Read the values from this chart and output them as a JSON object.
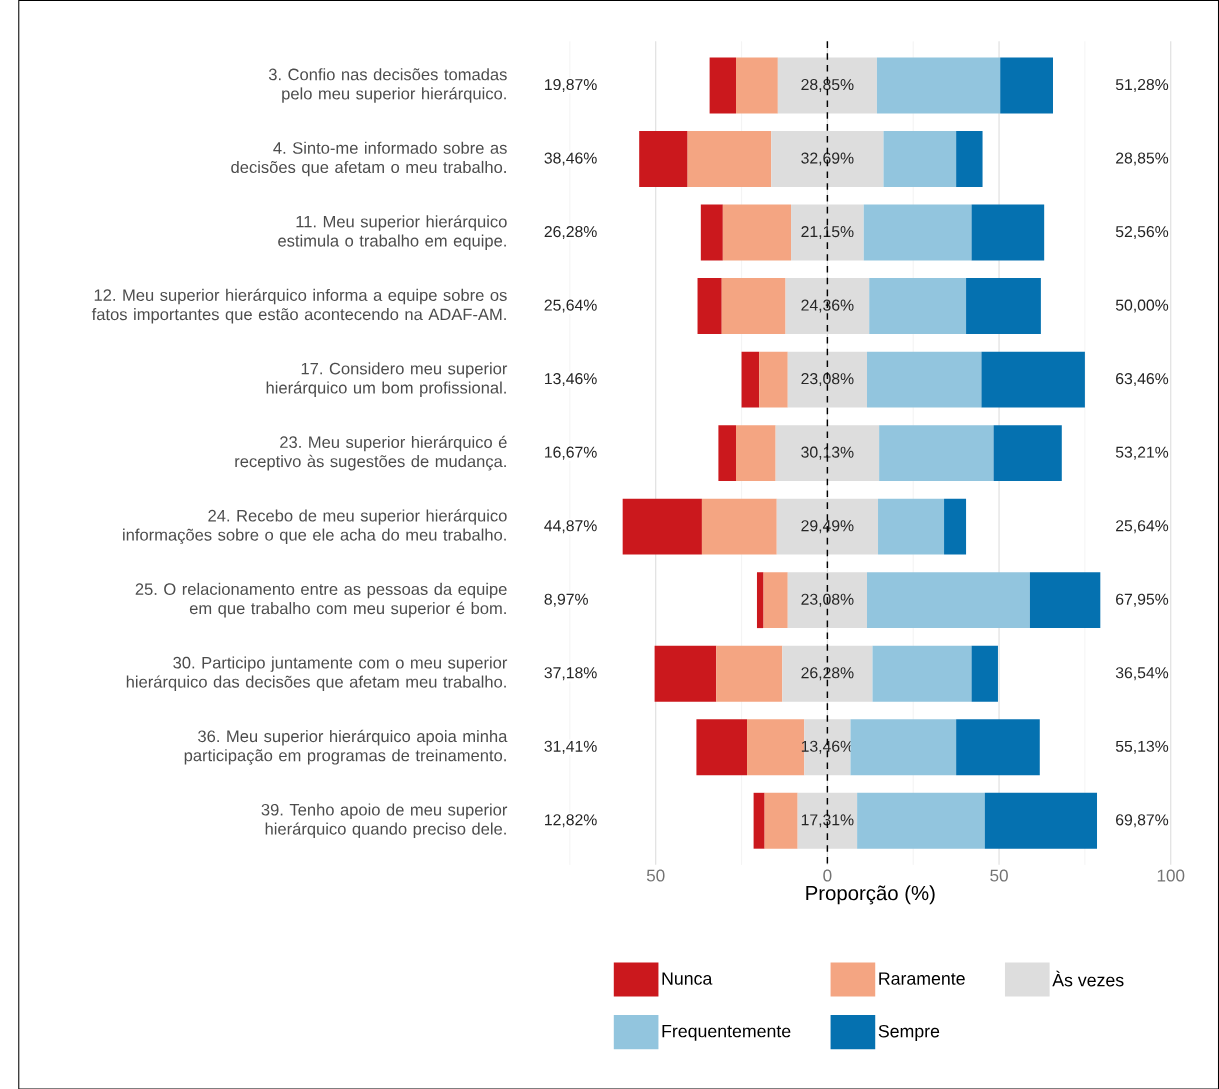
{
  "chart_data": {
    "type": "bar",
    "orientation": "horizontal",
    "categories": [
      "3. Confio nas decisões tomadas pelo meu superior hierárquico.",
      "4. Sinto-me informado sobre as decisões que afetam o meu trabalho.",
      "11. Meu superior hierárquico estimula o trabalho em equipe.",
      "12. Meu superior hierárquico informa a equipe sobre os fatos importantes que estão acontecendo na ADAF-AM.",
      "17. Considero meu superior hierárquico um bom profissional.",
      "23. Meu superior hierárquico é receptivo às sugestões de mudança.",
      "24. Recebo de meu superior hierárquico informações sobre o que ele acha do meu trabalho.",
      "25. O relacionamento entre as pessoas da equipe em que trabalho com meu superior é bom.",
      "30. Participo juntamente com o meu superior hierárquico das decisões que afetam meu trabalho.",
      "36. Meu superior hierárquico apoia minha participação em programas de treinamento.",
      "39. Tenho apoio de meu superior hierárquico quando preciso dele."
    ],
    "series": [
      {
        "name": "Nunca",
        "color": "#cb181d",
        "values": [
          7.69,
          14.1,
          6.41,
          7.05,
          5.13,
          5.13,
          23.08,
          1.92,
          17.95,
          14.74,
          3.21
        ],
        "base": [
          -34.3,
          -54.81,
          -36.86,
          -37.82,
          -25.0,
          -31.74,
          -59.62,
          -20.51,
          -50.32,
          -38.14,
          -21.49
        ]
      },
      {
        "name": "Raramente",
        "color": "#f4a582",
        "values": [
          12.18,
          24.36,
          19.87,
          18.59,
          8.33,
          11.54,
          21.79,
          7.05,
          19.23,
          16.67,
          9.62
        ],
        "base": [
          -26.61,
          -40.71,
          -30.45,
          -30.77,
          -19.87,
          -26.61,
          -36.54,
          -18.59,
          -32.37,
          -23.4,
          -18.28
        ]
      },
      {
        "name": "Às vezes",
        "color": "#dddddd",
        "values": [
          28.85,
          32.69,
          21.15,
          24.36,
          23.08,
          30.13,
          29.49,
          23.08,
          26.28,
          13.46,
          17.31
        ],
        "base": [
          -14.43,
          -16.35,
          -10.58,
          -12.18,
          -11.54,
          -15.07,
          -14.75,
          -11.54,
          -13.14,
          -6.73,
          -8.66
        ],
        "value_labels": [
          "28,85%",
          "32,69%",
          "21,15%",
          "24,36%",
          "23,08%",
          "30,13%",
          "29,49%",
          "23,08%",
          "26,28%",
          "13,46%",
          "17,31%"
        ]
      },
      {
        "name": "Frequentemente",
        "color": "#92c5de",
        "values": [
          35.9,
          21.15,
          31.41,
          28.21,
          33.33,
          33.33,
          19.23,
          47.44,
          28.85,
          30.77,
          37.18
        ],
        "base": [
          14.43,
          16.35,
          10.58,
          12.18,
          11.54,
          15.07,
          14.75,
          11.54,
          13.14,
          6.73,
          8.66
        ]
      },
      {
        "name": "Sempre",
        "color": "#0571b0",
        "values": [
          15.38,
          7.69,
          21.15,
          21.79,
          30.13,
          19.87,
          6.41,
          20.51,
          7.69,
          24.36,
          32.69
        ],
        "base": [
          50.33,
          37.5,
          41.99,
          40.39,
          44.87,
          48.4,
          33.98,
          58.98,
          41.99,
          37.5,
          45.84
        ]
      }
    ],
    "xlim": [
      -75,
      100
    ],
    "xticks": [
      {
        "value": -75,
        "label": null
      },
      {
        "value": -50,
        "label": "50"
      },
      {
        "value": -25,
        "label": null
      },
      0,
      {
        "value": 25,
        "label": null
      },
      50,
      {
        "value": 75,
        "label": null
      },
      100
    ],
    "xlabel": "Proporção (%)",
    "grid": "x",
    "legend": "bottom",
    "ref_lines": [
      {
        "axis": "x",
        "value": 0,
        "line_style": "dashed",
        "color": "#000000"
      }
    ],
    "annotations": [
      "19,87%",
      "51,28%",
      "38,46%",
      "28,85%",
      "26,28%",
      "52,56%",
      "25,64%",
      "50,00%",
      "13,46%",
      "63,46%",
      "16,67%",
      "53,21%",
      "44,87%",
      "25,64%",
      "8,97%",
      "67,95%",
      "37,18%",
      "36,54%",
      "31,41%",
      "55,13%",
      "12,82%",
      "69,87%"
    ]
  }
}
